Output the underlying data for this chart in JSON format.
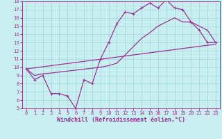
{
  "xlabel": "Windchill (Refroidissement éolien,°C)",
  "xlim": [
    -0.5,
    23.5
  ],
  "ylim": [
    5,
    18
  ],
  "xticks": [
    0,
    1,
    2,
    3,
    4,
    5,
    6,
    7,
    8,
    9,
    10,
    11,
    12,
    13,
    14,
    15,
    16,
    17,
    18,
    19,
    20,
    21,
    22,
    23
  ],
  "yticks": [
    5,
    6,
    7,
    8,
    9,
    10,
    11,
    12,
    13,
    14,
    15,
    16,
    17,
    18
  ],
  "bg_color": "#c8eef0",
  "line_color": "#993399",
  "grid_color": "#a0d8d8",
  "line1_x": [
    0,
    1,
    2,
    3,
    4,
    5,
    6,
    7,
    8,
    9,
    10,
    11,
    12,
    13,
    14,
    15,
    16,
    17,
    18,
    19,
    20,
    21,
    22,
    23
  ],
  "line1_y": [
    9.8,
    8.5,
    9.0,
    6.8,
    6.8,
    6.5,
    5.0,
    8.5,
    8.0,
    11.0,
    13.0,
    15.3,
    16.7,
    16.5,
    17.2,
    17.8,
    17.2,
    18.2,
    17.2,
    17.0,
    15.5,
    14.5,
    13.0,
    13.0
  ],
  "line2_x": [
    0,
    23
  ],
  "line2_y": [
    9.8,
    12.8
  ],
  "line3_x": [
    0,
    1,
    2,
    3,
    9,
    10,
    11,
    12,
    13,
    14,
    15,
    16,
    17,
    18,
    19,
    20,
    21,
    22,
    23
  ],
  "line3_y": [
    9.8,
    9.0,
    9.2,
    9.3,
    10.0,
    10.2,
    10.5,
    11.5,
    12.5,
    13.5,
    14.2,
    15.0,
    15.5,
    16.0,
    15.5,
    15.5,
    15.0,
    14.5,
    13.0
  ],
  "tick_fontsize": 5,
  "xlabel_fontsize": 6
}
